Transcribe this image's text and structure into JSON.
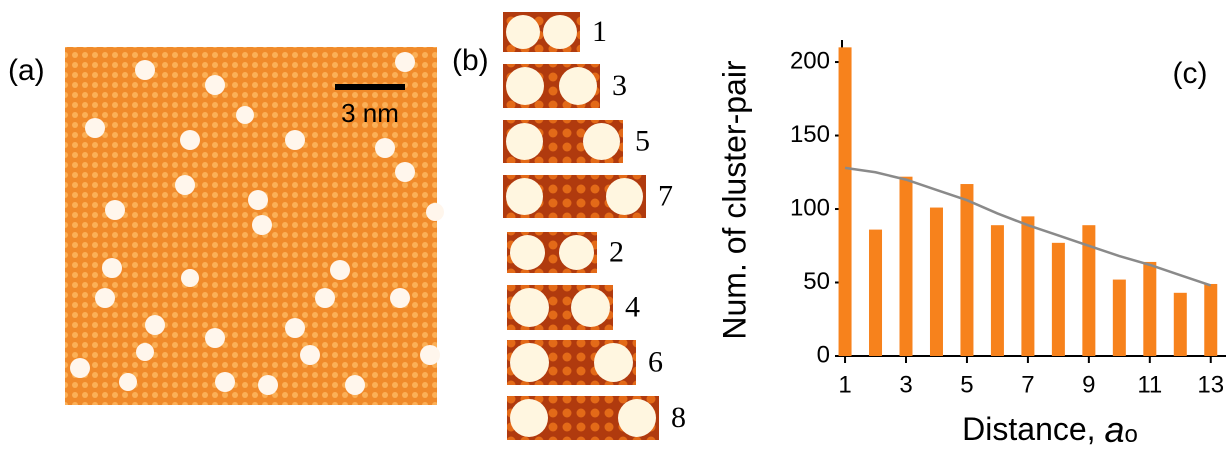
{
  "panel_a": {
    "label": "(a)",
    "scale_bar": "3 nm"
  },
  "panel_b": {
    "label": "(b)",
    "rows": [
      1,
      3,
      5,
      7,
      2,
      4,
      6,
      8
    ]
  },
  "chart_data": {
    "type": "bar",
    "label": "(c)",
    "y_label": "Num. of cluster-pair",
    "x_label": "Distance, ",
    "x_label_var": "a",
    "x_label_sub": "o",
    "x": [
      1,
      2,
      3,
      4,
      5,
      6,
      7,
      8,
      9,
      10,
      11,
      12,
      13
    ],
    "series": [
      {
        "color": "#f7821c",
        "values": [
          210,
          86,
          122,
          101,
          117,
          89,
          95,
          77,
          89,
          52,
          64,
          43,
          49
        ]
      }
    ],
    "trend": {
      "color": "#8a8a8a",
      "values": [
        128,
        125,
        120,
        113,
        106,
        97,
        89,
        82,
        75,
        68,
        62,
        55,
        48
      ]
    },
    "xlim": [
      0.9,
      13.5
    ],
    "xticks": [
      1,
      3,
      5,
      7,
      9,
      11,
      13
    ],
    "ylim": [
      0,
      215
    ],
    "yticks": [
      0,
      50,
      100,
      150,
      200
    ]
  }
}
